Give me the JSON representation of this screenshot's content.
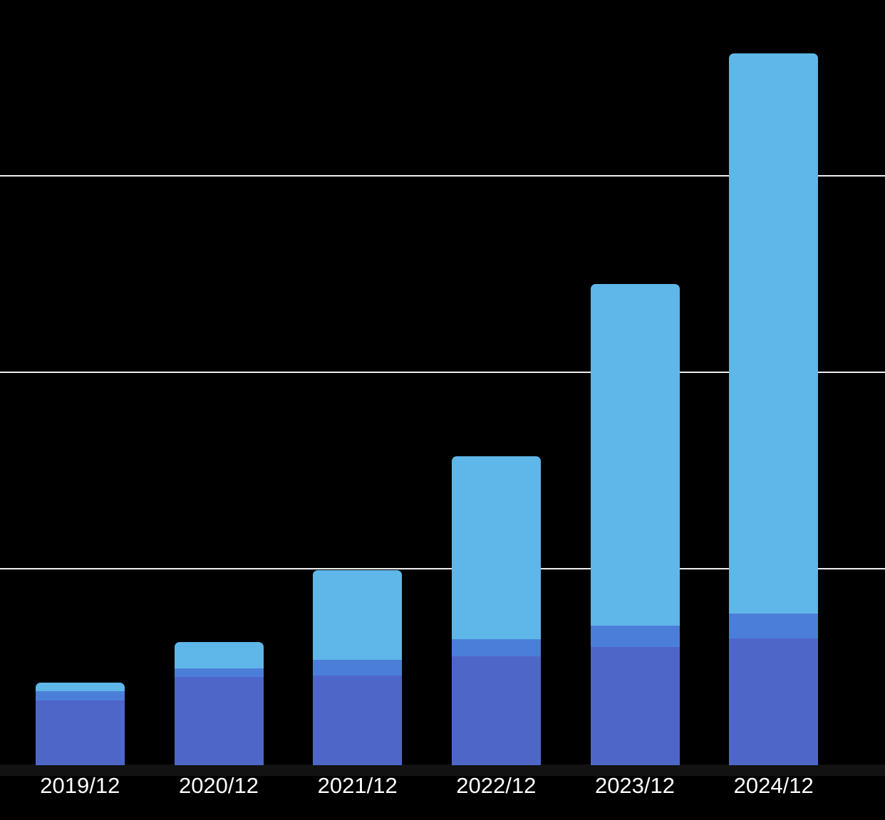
{
  "background": "#000000",
  "chart_data": {
    "type": "bar",
    "stacked": true,
    "title": "",
    "xlabel": "",
    "ylabel": "",
    "legend": "none",
    "grid": "horizontal",
    "grid_color": "#ededed",
    "axis_label_color": "#ffffff",
    "categories": [
      "2019/12",
      "2020/12",
      "2021/12",
      "2022/12",
      "2023/12",
      "2024/12"
    ],
    "value_unit": "relative (1 = one gridline interval; no numeric axis labels visible)",
    "ylim": [
      0,
      3.9
    ],
    "gridline_values": [
      1,
      2,
      3
    ],
    "series": [
      {
        "name": "segment-bottom",
        "color": "#4f66c9",
        "values": [
          0.33,
          0.45,
          0.455,
          0.555,
          0.6,
          0.645
        ]
      },
      {
        "name": "segment-middle",
        "color": "#4b7ed9",
        "values": [
          0.048,
          0.044,
          0.08,
          0.087,
          0.11,
          0.127
        ]
      },
      {
        "name": "segment-top",
        "color": "#5fb6e8",
        "values": [
          0.044,
          0.135,
          0.455,
          0.93,
          1.74,
          2.85
        ]
      }
    ],
    "totals": [
      0.422,
      0.629,
      0.99,
      1.572,
      2.45,
      3.622
    ]
  }
}
